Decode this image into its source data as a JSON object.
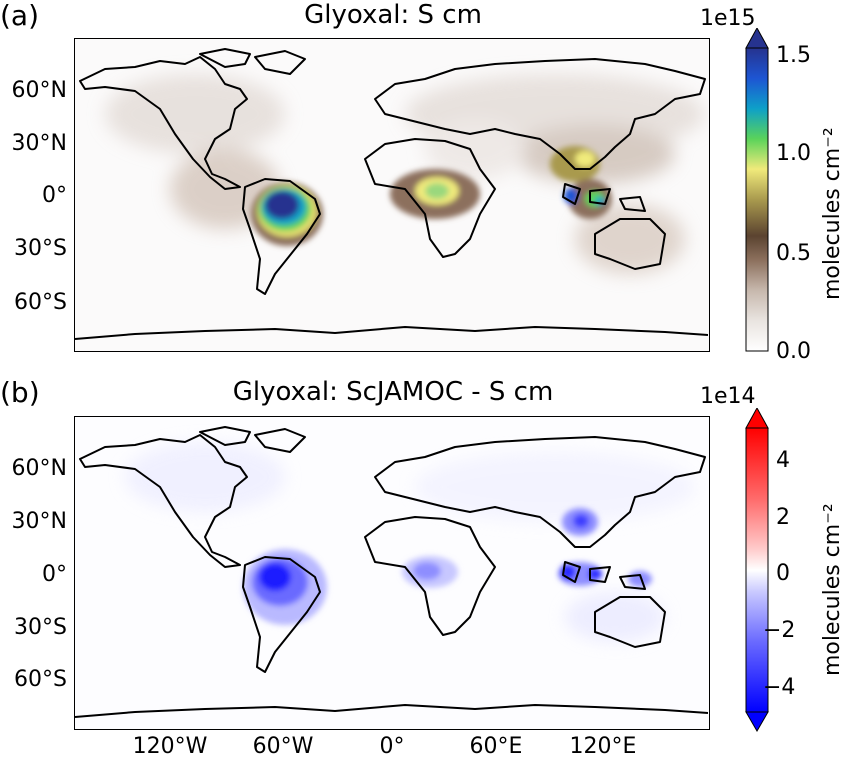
{
  "panels": [
    {
      "letter": "(a)",
      "title": "Glyoxal: S cm",
      "colorbar": {
        "scale_label": "1e15",
        "unit_label": "molecules cm⁻²",
        "ticks": [
          "1.5",
          "1.0",
          "0.5",
          "0.0"
        ],
        "colormap": [
          "#ffffff",
          "#e9e4e0",
          "#c7b8ad",
          "#8c705d",
          "#5b4330",
          "#a99a4e",
          "#f0ea7b",
          "#5ad35a",
          "#0ea0c8",
          "#1d55d3",
          "#26338f"
        ],
        "range": [
          0.0,
          1.5
        ],
        "extend": "max"
      }
    },
    {
      "letter": "(b)",
      "title": "Glyoxal: ScJAMOC - S cm",
      "colorbar": {
        "scale_label": "1e14",
        "unit_label": "molecules cm⁻²",
        "ticks": [
          "4",
          "2",
          "0",
          "−2",
          "−4"
        ],
        "colormap": [
          "#0000ff",
          "#6b6bff",
          "#c7c7ff",
          "#ffffff",
          "#ffc7c7",
          "#ff6b6b",
          "#ff0000"
        ],
        "range": [
          -5,
          5
        ],
        "extend": "both"
      }
    }
  ],
  "lat_labels": [
    "60°N",
    "30°N",
    "0°",
    "30°S",
    "60°S"
  ],
  "lon_labels": [
    "120°W",
    "60°W",
    "0°",
    "60°E",
    "120°E"
  ]
}
